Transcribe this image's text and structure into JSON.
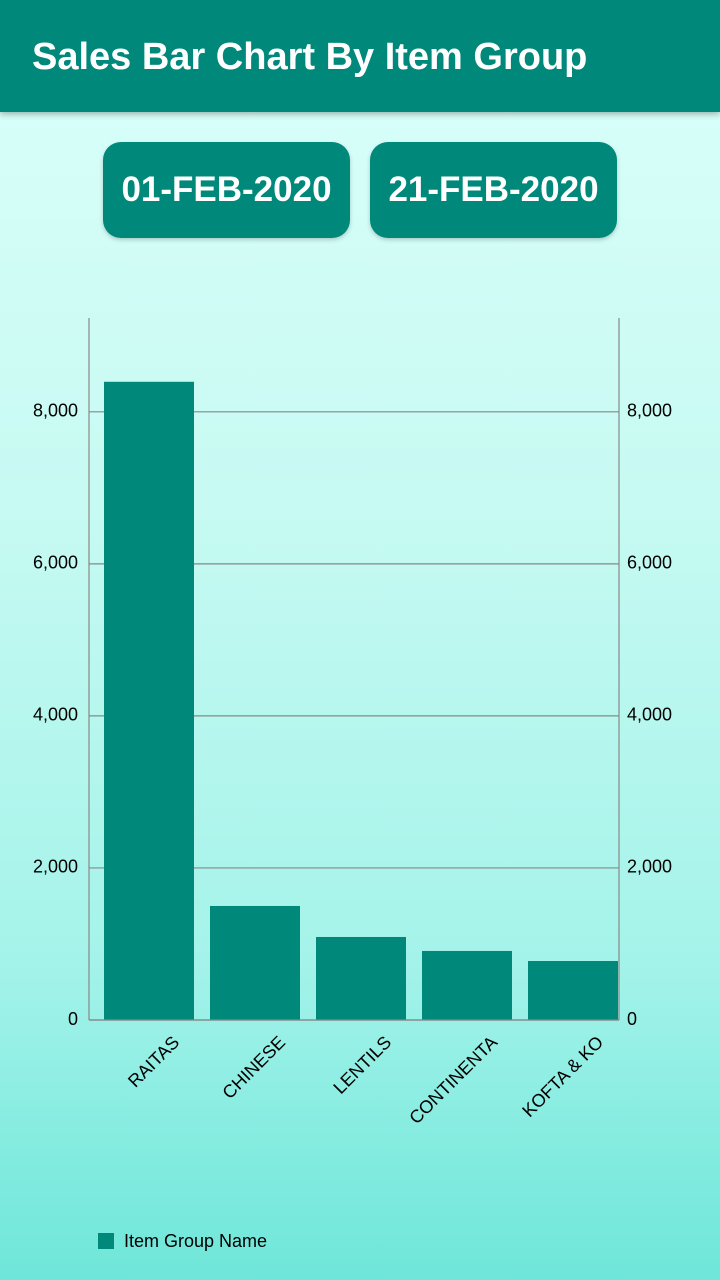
{
  "header": {
    "title": "Sales Bar Chart By Item Group"
  },
  "date_buttons": [
    "01-FEB-2020",
    "21-FEB-2020"
  ],
  "chart_data": {
    "type": "bar",
    "categories": [
      "RAITAS",
      "CHINESE",
      "LENTILS",
      "CONTINENTA",
      "KOFTA & KO"
    ],
    "series": [
      {
        "name": "Item Group Name",
        "color": "#00897b",
        "values": [
          8395,
          1500,
          1092,
          908,
          776
        ]
      }
    ],
    "ylim": [
      0,
      9234
    ],
    "yticks": [
      0,
      {
        "value": 2000,
        "label": "2,000"
      },
      {
        "value": 4000,
        "label": "4,000"
      },
      {
        "value": 6000,
        "label": "6,000"
      },
      {
        "value": 8000,
        "label": "8,000"
      }
    ],
    "y2lim": [
      0,
      9234
    ],
    "y2ticks": [
      0,
      {
        "value": 2000,
        "label": "2,000"
      },
      {
        "value": 4000,
        "label": "4,000"
      },
      {
        "value": 6000,
        "label": "6,000"
      },
      {
        "value": 8000,
        "label": "8,000"
      }
    ],
    "grid": true,
    "legend": "bottom-left"
  }
}
